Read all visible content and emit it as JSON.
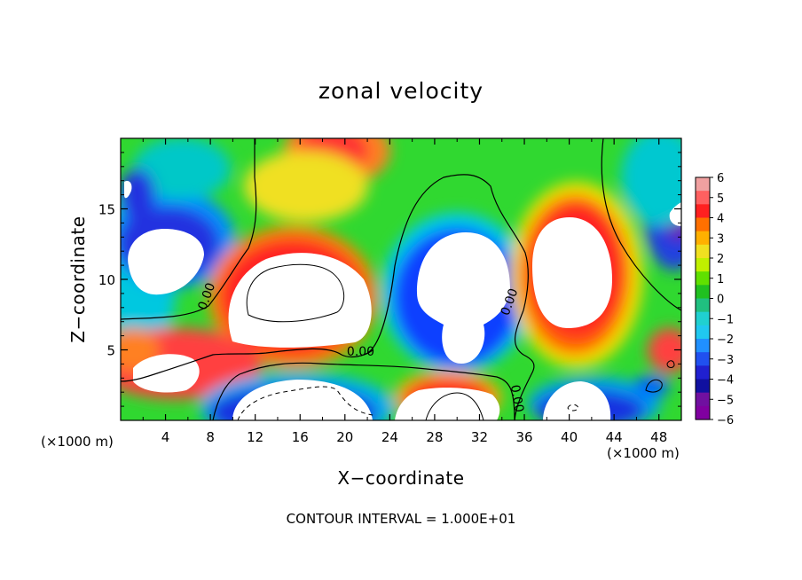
{
  "chart_data": {
    "type": "heatmap",
    "title": "zonal velocity",
    "xlabel": "X−coordinate",
    "ylabel": "Z−coordinate",
    "x_unit_left": "(×1000 m)",
    "x_unit_right": "(×1000 m)",
    "footnote": "CONTOUR INTERVAL = 1.000E+01",
    "xlim": [
      0,
      50
    ],
    "ylim": [
      0,
      20
    ],
    "x_ticks": [
      4,
      8,
      12,
      16,
      20,
      24,
      28,
      32,
      36,
      40,
      44,
      48
    ],
    "x_tick_labels": [
      "4",
      "8",
      "12",
      "16",
      "20",
      "24",
      "28",
      "32",
      "36",
      "40",
      "44",
      "48"
    ],
    "y_ticks": [
      5,
      10,
      15
    ],
    "y_tick_labels": [
      "5",
      "10",
      "15"
    ],
    "colorbar": {
      "range": [
        -6,
        6
      ],
      "ticks": [
        6,
        5,
        4,
        3,
        2,
        1,
        0,
        -1,
        -2,
        -3,
        -4,
        -5,
        -6
      ],
      "tick_labels": [
        "6",
        "5",
        "4",
        "3",
        "2",
        "1",
        "0",
        "−1",
        "−2",
        "−3",
        "−4",
        "−5",
        "−6"
      ]
    },
    "contour_labels": [
      {
        "text": "0.00",
        "x": 8.0,
        "z": 8.7
      },
      {
        "text": "0.00",
        "x": 21.4,
        "z": 4.6
      },
      {
        "text": "0.00",
        "x": 35.0,
        "z": 8.3
      },
      {
        "text": "0.00",
        "x": 35.0,
        "z": 1.5
      }
    ],
    "features": [
      {
        "name": "cold-top-left",
        "x": 3.5,
        "z": 14.5,
        "value": -6
      },
      {
        "name": "hot-top-center",
        "x": 19.5,
        "z": 19.5,
        "value": 5.5
      },
      {
        "name": "hot-core-left",
        "x": 17.0,
        "z": 9.5,
        "value": 6
      },
      {
        "name": "cold-core-center",
        "x": 30.0,
        "z": 10.0,
        "value": -6
      },
      {
        "name": "hot-core-right",
        "x": 40.5,
        "z": 10.5,
        "value": 6
      },
      {
        "name": "cold-right-edge",
        "x": 49.5,
        "z": 15.5,
        "value": -6
      },
      {
        "name": "hot-lower-left",
        "x": 4.5,
        "z": 3.5,
        "value": 6
      },
      {
        "name": "cold-bottom-center-left",
        "x": 16.5,
        "z": 1.0,
        "value": -6
      },
      {
        "name": "hot-bottom-center",
        "x": 28.5,
        "z": 1.0,
        "value": 6
      },
      {
        "name": "cold-bottom-right",
        "x": 40.0,
        "z": 1.0,
        "value": -6
      }
    ]
  }
}
